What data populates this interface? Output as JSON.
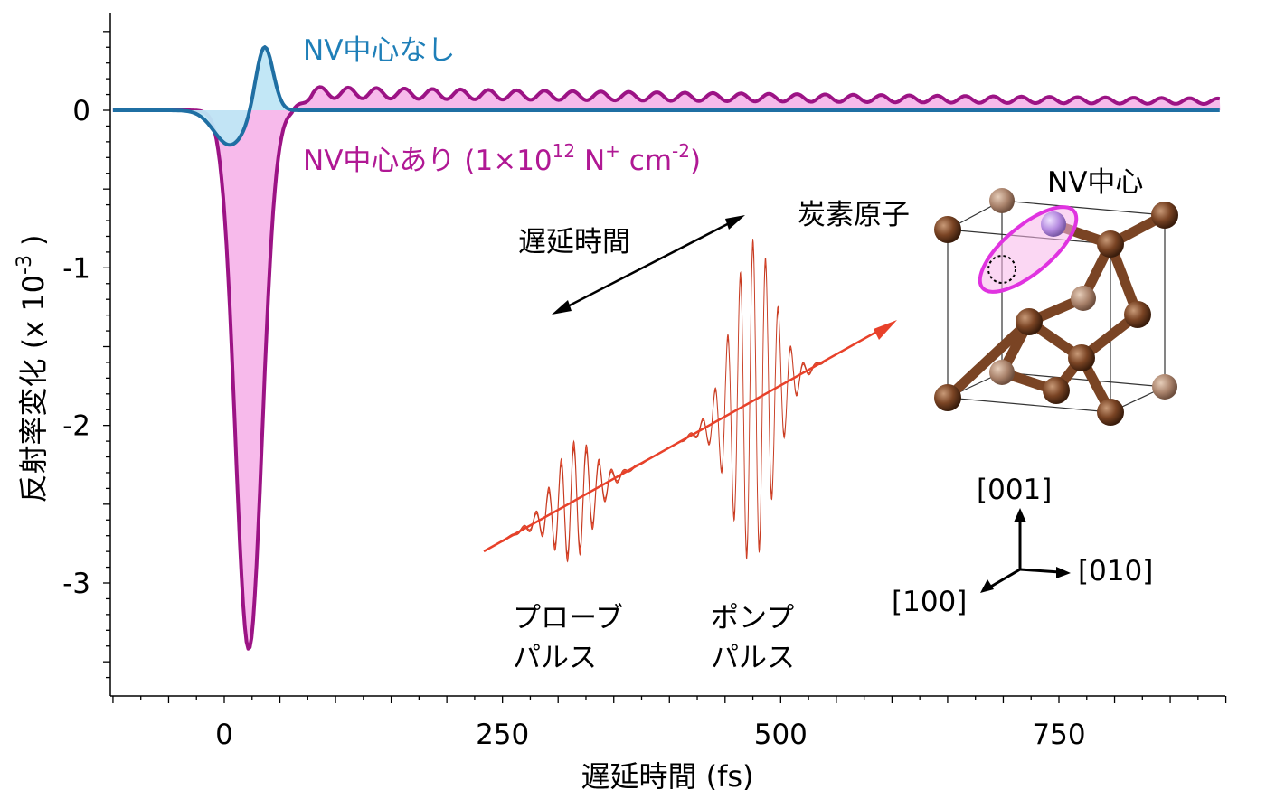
{
  "chart_data": {
    "type": "line",
    "xlabel": "遅延時間 (fs)",
    "ylabel": "反射率変化 (x 10",
    "ylabel_exp": "-3",
    "ylabel_close": ")",
    "xlim": [
      -100,
      900
    ],
    "ylim": [
      -3.7,
      0.6
    ],
    "x_ticks": [
      0,
      250,
      500,
      750
    ],
    "y_ticks": [
      0,
      -1,
      -2,
      -3
    ],
    "x_tick_labels": [
      "0",
      "250",
      "500",
      "750"
    ],
    "y_tick_labels": [
      "0",
      "-1",
      "-2",
      "-3"
    ],
    "grid": false,
    "series": [
      {
        "name": "NV中心なし",
        "color": "#1f6fa3",
        "fill": "#bfe6f6",
        "model": {
          "gauss_center": 5,
          "gauss_width": 20,
          "gauss_amp": -0.22,
          "pos_center": 36,
          "pos_width": 11,
          "pos_amp": 0.42,
          "tail": 0.0
        }
      },
      {
        "name": "NV中心あり",
        "label_suffix": "(1×10",
        "label_exp1": "12",
        "label_mid": " N",
        "label_exp2": "+",
        "label_mid2": " cm",
        "label_exp3": "-2",
        "label_end": ")",
        "color": "#9c1385",
        "fill": "#f7b6ea",
        "model": {
          "gauss_center": 22,
          "gauss_width": 17,
          "gauss_amp": -3.42,
          "osc_offset": 0.12,
          "osc_amp": 0.07,
          "osc_period": 25.2,
          "osc_decay": 1200
        }
      }
    ]
  },
  "inset": {
    "delay_label": "遅延時間",
    "probe_label_1": "プローブ",
    "probe_label_2": "パルス",
    "pump_label_1": "ポンプ",
    "pump_label_2": "パルス",
    "carbon_label": "炭素原子",
    "nv_label": "NV中心",
    "axis_001": "[001]",
    "axis_010": "[010]",
    "axis_100": "[100]",
    "pulse_color": "#e8412a",
    "atom_color": "#6b3a1f",
    "nv_atom_color": "#b58be0",
    "nv_ring_color": "#e033e0"
  }
}
